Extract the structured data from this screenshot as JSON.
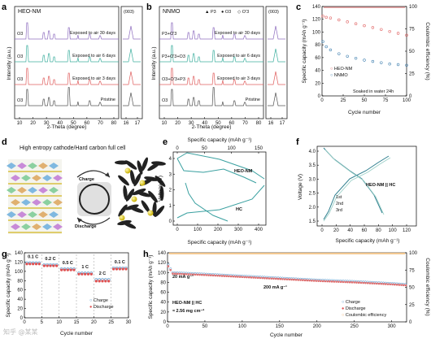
{
  "panels": {
    "a": {
      "letter": "a",
      "sample": "HEO-NM",
      "xlabel": "2-Theta (degree)",
      "ylabel": "Intensity (a.u.)",
      "ticks_main": [
        "10",
        "20",
        "30",
        "40",
        "50",
        "60",
        "70",
        "80"
      ],
      "ticks_zoom": [
        "16",
        "17"
      ],
      "peak_label": "(003)",
      "phase_labels": [
        "O3",
        "O3",
        "O3",
        "O3"
      ],
      "traces": [
        {
          "label": "Pristine",
          "color": "#555555"
        },
        {
          "label": "Exposed to air 3 days",
          "color": "#e06060"
        },
        {
          "label": "Exposed to air 6 days",
          "color": "#40b0a0"
        },
        {
          "label": "Exposed to air 30 days",
          "color": "#9070c0"
        }
      ]
    },
    "b": {
      "letter": "b",
      "sample": "NNMO",
      "xlabel": "2-Theta (degree)",
      "ylabel": "Intensity (a.u.)",
      "ticks_main": [
        "10",
        "20",
        "30",
        "40",
        "50",
        "60",
        "70",
        "80"
      ],
      "ticks_zoom": [
        "16",
        "17"
      ],
      "peak_label": "(003)",
      "legend": [
        "▲ P3",
        "● O3",
        "◇ O'3"
      ],
      "phase_labels": [
        "O3",
        "O3+O'3+P3",
        "P3+O'3+O3",
        "P3+O'3"
      ],
      "traces": [
        {
          "label": "Pristine",
          "color": "#555555"
        },
        {
          "label": "Exposed to air 3 days",
          "color": "#e06060"
        },
        {
          "label": "Exposed to air 6 days",
          "color": "#40b0a0"
        },
        {
          "label": "Exposed to air 30 days",
          "color": "#9070c0"
        }
      ]
    },
    "c": {
      "letter": "c",
      "xlabel": "Cycle number",
      "ylabel": "Specific capacity (mAh g⁻¹)",
      "ylabel2": "Coulombic efficiency (%)",
      "ticks_x": [
        "0",
        "25",
        "50",
        "75",
        "100"
      ],
      "ticks_y": [
        "0",
        "20",
        "40",
        "60",
        "80",
        "100",
        "120",
        "140"
      ],
      "ticks_y2": [
        "0",
        "25",
        "50",
        "75",
        "100"
      ],
      "legend": [
        "HEO-NM",
        "NNMO"
      ],
      "note": "Soaked in water 24h"
    },
    "d": {
      "letter": "d",
      "title": "High entropy cathode/Hard carbon full cell",
      "charge": "Charge",
      "discharge": "Discharge"
    },
    "e": {
      "letter": "e",
      "top_label": "Specific capacity (mAh g⁻¹)",
      "top_ticks": [
        "0",
        "50",
        "100",
        "150"
      ],
      "xlabel": "Specific capacity (mAh g⁻¹)",
      "ylabel": "Voltage (V)",
      "ticks_x": [
        "0",
        "100",
        "200",
        "300",
        "400"
      ],
      "ticks_y": [
        "0",
        "1",
        "2",
        "3",
        "4"
      ],
      "label_cathode": "HEO-NM",
      "label_anode": "HC"
    },
    "f": {
      "letter": "f",
      "xlabel": "Specific capacity (mAh g⁻¹)",
      "ylabel": "Voltage (V)",
      "ticks_x": [
        "0",
        "20",
        "40",
        "60",
        "80",
        "100",
        "120"
      ],
      "ticks_y": [
        "1.5",
        "2.0",
        "2.5",
        "3.0",
        "3.5",
        "4.0"
      ],
      "label": "HEO-NM || HC",
      "legend": [
        "1st",
        "2nd",
        "3rd"
      ]
    },
    "g": {
      "letter": "g",
      "xlabel": "Cycle number",
      "ylabel": "Specific capacity (mAh g⁻¹)",
      "ticks_x": [
        "0",
        "5",
        "10",
        "15",
        "20",
        "25",
        "30"
      ],
      "ticks_y": [
        "0",
        "20",
        "40",
        "60",
        "80",
        "100",
        "120",
        "140"
      ],
      "rates": [
        "0.1 C",
        "0.2 C",
        "0.5 C",
        "1 C",
        "2 C",
        "0.1 C"
      ],
      "legend": [
        "Charge",
        "Discharge"
      ]
    },
    "h": {
      "letter": "h",
      "xlabel": "Cycle number",
      "ylabel": "Specific capacity (mAh g⁻¹)",
      "ylabel2": "Coulombic efficiency (%)",
      "ticks_x": [
        "0",
        "50",
        "100",
        "150",
        "200",
        "250",
        "300"
      ],
      "ticks_y": [
        "0",
        "20",
        "40",
        "60",
        "80",
        "100",
        "120",
        "140"
      ],
      "ticks_y2": [
        "0",
        "25",
        "50",
        "75",
        "100"
      ],
      "rate1": "20 mA g⁻¹",
      "rate2": "200 mA g⁻¹",
      "cell": "HEO-NM || HC",
      "loading": "≈ 2.56 mg cm⁻²",
      "legend": [
        "Charge",
        "Discharge",
        "Coulombic efficiency"
      ]
    }
  },
  "watermark": "知乎 @某某",
  "chart_data": [
    {
      "type": "line",
      "panel": "c",
      "xlim": [
        0,
        100
      ],
      "ylim": [
        0,
        140
      ],
      "y2lim": [
        0,
        100
      ],
      "series": [
        {
          "name": "HEO-NM",
          "x": [
            1,
            5,
            10,
            20,
            30,
            40,
            50,
            60,
            70,
            80,
            90,
            100
          ],
          "values": [
            125,
            123,
            122,
            119,
            116,
            113,
            110,
            107,
            104,
            101,
            98,
            95
          ]
        },
        {
          "name": "NNMO",
          "x": [
            1,
            5,
            10,
            20,
            30,
            40,
            50,
            60,
            70,
            80,
            90,
            100
          ],
          "values": [
            85,
            77,
            72,
            66,
            62,
            59,
            56,
            54,
            52,
            50,
            49,
            48
          ]
        }
      ],
      "ce_values": [
        100,
        100
      ]
    },
    {
      "type": "scatter",
      "panel": "g",
      "xlim": [
        0,
        30
      ],
      "ylim": [
        0,
        140
      ],
      "categories": [
        "0.1 C",
        "0.2 C",
        "0.5 C",
        "1 C",
        "2 C",
        "0.1 C"
      ],
      "series": [
        {
          "name": "Charge",
          "values": [
            118,
            114,
            105,
            96,
            82,
            107
          ]
        },
        {
          "name": "Discharge",
          "values": [
            116,
            112,
            103,
            94,
            79,
            105
          ]
        }
      ]
    },
    {
      "type": "line",
      "panel": "h",
      "xlim": [
        0,
        320
      ],
      "ylim": [
        0,
        140
      ],
      "y2lim": [
        0,
        100
      ],
      "series": [
        {
          "name": "Charge",
          "x": [
            0,
            3,
            5,
            50,
            100,
            150,
            200,
            250,
            300,
            320
          ],
          "values": [
            117,
            115,
            100,
            97,
            93,
            89,
            85,
            82,
            78,
            76
          ]
        },
        {
          "name": "Discharge",
          "x": [
            0,
            3,
            5,
            50,
            100,
            150,
            200,
            250,
            300,
            320
          ],
          "values": [
            113,
            112,
            98,
            95,
            91,
            87,
            83,
            80,
            76,
            74
          ]
        },
        {
          "name": "Coulombic efficiency",
          "x": [
            0,
            320
          ],
          "values": [
            100,
            100
          ]
        }
      ]
    }
  ]
}
